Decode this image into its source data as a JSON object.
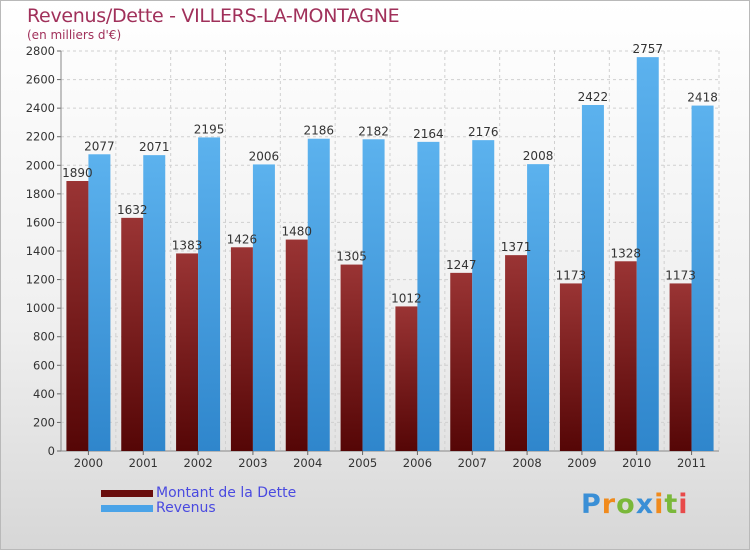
{
  "title": "Revenus/Dette - VILLERS-LA-MONTAGNE",
  "subtitle": "(en milliers d'€)",
  "colors": {
    "debt": "#7a1c1c",
    "revenue": "#4aa3e8",
    "title": "#a0305a",
    "legend_text": "#4a4ae0"
  },
  "legend": {
    "debt_label": "Montant de la Dette",
    "revenue_label": "Revenus"
  },
  "logo": {
    "letters": [
      "P",
      "r",
      "o",
      "x",
      "i",
      "t",
      "i"
    ],
    "colors": [
      "#3a8fd6",
      "#f08a1c",
      "#7ab83a",
      "#3a8fd6",
      "#f08a1c",
      "#7ab83a",
      "#e84a4a"
    ]
  },
  "chart_data": {
    "type": "bar",
    "categories": [
      "2000",
      "2001",
      "2002",
      "2003",
      "2004",
      "2005",
      "2006",
      "2007",
      "2008",
      "2009",
      "2010",
      "2011"
    ],
    "series": [
      {
        "name": "Montant de la Dette",
        "values": [
          1890,
          1632,
          1383,
          1426,
          1480,
          1305,
          1012,
          1247,
          1371,
          1173,
          1328,
          1173
        ]
      },
      {
        "name": "Revenus",
        "values": [
          2077,
          2071,
          2195,
          2006,
          2186,
          2182,
          2164,
          2176,
          2008,
          2422,
          2757,
          2418
        ]
      }
    ],
    "ylim": [
      0,
      2800
    ],
    "ytick_step": 200,
    "grid": true,
    "legend_position": "bottom-left"
  }
}
